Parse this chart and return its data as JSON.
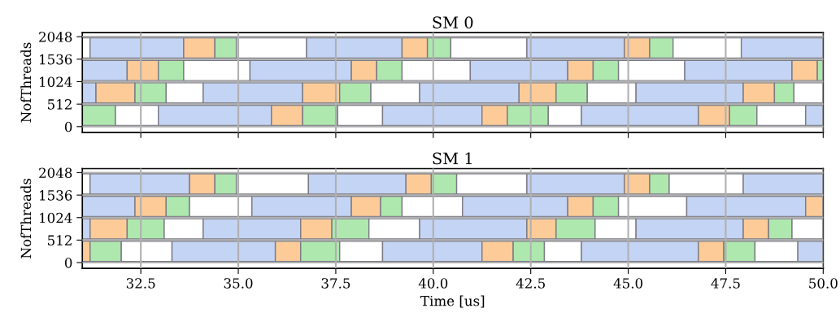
{
  "chart_data": [
    {
      "type": "bar",
      "title": "SM 0",
      "ylabel": "NofThreads",
      "orientation": "horizontal",
      "xlim": [
        31,
        50
      ],
      "xticks": [
        32.5,
        35,
        37.5,
        40,
        42.5,
        45,
        47.5,
        50
      ],
      "ylim": [
        -130,
        2140
      ],
      "yticks": [
        0,
        512,
        1024,
        1536,
        2048
      ],
      "grid": true,
      "tick_labels": "y",
      "series": [
        {
          "x": [
            1792,
            1280,
            768,
            256
          ],
          "base": [
            31,
            31,
            31,
            31
          ],
          "values": [
            0.2,
            1.15,
            0.35,
            0.85
          ],
          "colors": [
            "#ffffff",
            "#c4d4f4",
            "#c4d4f4",
            "#aee8ae"
          ]
        },
        {
          "x": [
            1792,
            1280,
            768,
            256
          ],
          "base": [
            31.2,
            32.15,
            31.35,
            31.85
          ],
          "values": [
            2.4,
            0.8,
            1.0,
            1.1
          ],
          "colors": [
            "#c4d4f4",
            "#fdcb98",
            "#fdcb98",
            "#ffffff"
          ]
        },
        {
          "x": [
            1792,
            1280,
            768,
            256
          ],
          "base": [
            33.6,
            32.95,
            32.35,
            32.95
          ],
          "values": [
            0.8,
            0.65,
            0.8,
            2.9
          ],
          "colors": [
            "#fdcb98",
            "#aee8ae",
            "#aee8ae",
            "#c4d4f4"
          ]
        },
        {
          "x": [
            1792,
            1280,
            768,
            256
          ],
          "base": [
            34.4,
            33.6,
            33.15,
            35.85
          ],
          "values": [
            0.55,
            1.7,
            0.95,
            0.8
          ],
          "colors": [
            "#aee8ae",
            "#ffffff",
            "#ffffff",
            "#fdcb98"
          ]
        },
        {
          "x": [
            1792,
            1280,
            768,
            256
          ],
          "base": [
            34.95,
            35.3,
            34.1,
            36.65
          ],
          "values": [
            1.8,
            2.6,
            2.55,
            0.9
          ],
          "colors": [
            "#ffffff",
            "#c4d4f4",
            "#c4d4f4",
            "#aee8ae"
          ]
        },
        {
          "x": [
            1792,
            1280,
            768,
            256
          ],
          "base": [
            36.75,
            37.9,
            36.65,
            37.55
          ],
          "values": [
            2.45,
            0.65,
            0.95,
            1.15
          ],
          "colors": [
            "#c4d4f4",
            "#fdcb98",
            "#fdcb98",
            "#ffffff"
          ]
        },
        {
          "x": [
            1792,
            1280,
            768,
            256
          ],
          "base": [
            39.2,
            38.55,
            37.6,
            38.7
          ],
          "values": [
            0.65,
            0.65,
            0.8,
            2.55
          ],
          "colors": [
            "#fdcb98",
            "#aee8ae",
            "#aee8ae",
            "#c4d4f4"
          ]
        },
        {
          "x": [
            1792,
            1280,
            768,
            256
          ],
          "base": [
            39.85,
            39.2,
            38.4,
            41.25
          ],
          "values": [
            0.6,
            1.75,
            1.25,
            0.65
          ],
          "colors": [
            "#aee8ae",
            "#ffffff",
            "#ffffff",
            "#fdcb98"
          ]
        },
        {
          "x": [
            1792,
            1280,
            768,
            256
          ],
          "base": [
            40.45,
            40.95,
            39.65,
            41.9
          ],
          "values": [
            1.95,
            2.5,
            2.55,
            1.05
          ],
          "colors": [
            "#ffffff",
            "#c4d4f4",
            "#c4d4f4",
            "#aee8ae"
          ]
        },
        {
          "x": [
            1792,
            1280,
            768,
            256
          ],
          "base": [
            42.4,
            43.45,
            42.2,
            42.95
          ],
          "values": [
            2.5,
            0.65,
            0.95,
            0.85
          ],
          "colors": [
            "#c4d4f4",
            "#fdcb98",
            "#fdcb98",
            "#ffffff"
          ]
        },
        {
          "x": [
            1792,
            1280,
            768,
            256
          ],
          "base": [
            44.9,
            44.1,
            43.15,
            43.8
          ],
          "values": [
            0.65,
            0.65,
            0.8,
            3.0
          ],
          "colors": [
            "#fdcb98",
            "#aee8ae",
            "#aee8ae",
            "#c4d4f4"
          ]
        },
        {
          "x": [
            1792,
            1280,
            768,
            256
          ],
          "base": [
            45.55,
            44.75,
            43.95,
            46.8
          ],
          "values": [
            0.6,
            1.7,
            1.25,
            0.8
          ],
          "colors": [
            "#aee8ae",
            "#ffffff",
            "#ffffff",
            "#fdcb98"
          ]
        },
        {
          "x": [
            1792,
            1280,
            768,
            256
          ],
          "base": [
            46.15,
            46.45,
            45.2,
            47.6
          ],
          "values": [
            1.75,
            2.75,
            2.75,
            0.7
          ],
          "colors": [
            "#ffffff",
            "#c4d4f4",
            "#c4d4f4",
            "#aee8ae"
          ]
        },
        {
          "x": [
            1792,
            1280,
            768,
            256
          ],
          "base": [
            47.9,
            49.2,
            47.95,
            48.3
          ],
          "values": [
            2.1,
            0.65,
            0.8,
            1.25
          ],
          "colors": [
            "#c4d4f4",
            "#fdcb98",
            "#fdcb98",
            "#ffffff"
          ]
        },
        {
          "x": [
            null,
            1280,
            768,
            256
          ],
          "base": [
            null,
            49.85,
            48.75,
            49.55
          ],
          "values": [
            null,
            0.15,
            0.5,
            0.45
          ],
          "colors": [
            null,
            "#aee8ae",
            "#aee8ae",
            "#c4d4f4"
          ]
        },
        {
          "x": [
            null,
            null,
            768,
            null
          ],
          "base": [
            null,
            null,
            49.25,
            null
          ],
          "values": [
            null,
            null,
            0.75,
            null
          ],
          "colors": [
            null,
            null,
            "#ffffff",
            null
          ]
        }
      ]
    },
    {
      "type": "bar",
      "title": "SM 1",
      "xlabel": "Time [us]",
      "ylabel": "NofThreads",
      "orientation": "horizontal",
      "xlim": [
        31,
        50
      ],
      "xticks": [
        32.5,
        {
          "value": 35,
          "label": "35.0"
        },
        37.5,
        {
          "value": 40,
          "label": "40.0"
        },
        42.5,
        {
          "value": 45,
          "label": "45.0"
        },
        47.5,
        {
          "value": 50,
          "label": "50.0"
        }
      ],
      "ylim": [
        -130,
        2140
      ],
      "yticks": [
        0,
        512,
        1024,
        1536,
        2048
      ],
      "grid": true,
      "series": [
        {
          "x": [
            1792,
            1280,
            768,
            256
          ],
          "base": [
            31,
            31,
            31,
            31
          ],
          "values": [
            0.2,
            1.35,
            0.2,
            0.2
          ],
          "colors": [
            "#ffffff",
            "#c4d4f4",
            "#c4d4f4",
            "#fdcb98"
          ]
        },
        {
          "x": [
            1792,
            1280,
            768,
            256
          ],
          "base": [
            31.2,
            32.35,
            31.2,
            31.2
          ],
          "values": [
            2.55,
            0.8,
            0.95,
            0.8
          ],
          "colors": [
            "#c4d4f4",
            "#fdcb98",
            "#fdcb98",
            "#aee8ae"
          ]
        },
        {
          "x": [
            1792,
            1280,
            768,
            256
          ],
          "base": [
            33.75,
            33.15,
            32.15,
            32.0
          ],
          "values": [
            0.65,
            0.6,
            0.95,
            1.3
          ],
          "colors": [
            "#fdcb98",
            "#aee8ae",
            "#aee8ae",
            "#ffffff"
          ]
        },
        {
          "x": [
            1792,
            1280,
            768,
            256
          ],
          "base": [
            34.4,
            33.75,
            33.1,
            33.3
          ],
          "values": [
            0.55,
            1.6,
            1.0,
            2.65
          ],
          "colors": [
            "#aee8ae",
            "#ffffff",
            "#ffffff",
            "#c4d4f4"
          ]
        },
        {
          "x": [
            1792,
            1280,
            768,
            256
          ],
          "base": [
            34.95,
            35.35,
            34.1,
            35.95
          ],
          "values": [
            1.85,
            2.55,
            2.5,
            0.65
          ],
          "colors": [
            "#ffffff",
            "#c4d4f4",
            "#c4d4f4",
            "#fdcb98"
          ]
        },
        {
          "x": [
            1792,
            1280,
            768,
            256
          ],
          "base": [
            36.8,
            37.9,
            36.6,
            36.6
          ],
          "values": [
            2.5,
            0.75,
            0.8,
            1.0
          ],
          "colors": [
            "#c4d4f4",
            "#fdcb98",
            "#fdcb98",
            "#aee8ae"
          ]
        },
        {
          "x": [
            1792,
            1280,
            768,
            256
          ],
          "base": [
            39.3,
            38.65,
            37.4,
            37.6
          ],
          "values": [
            0.65,
            0.55,
            0.95,
            1.1
          ],
          "colors": [
            "#fdcb98",
            "#aee8ae",
            "#aee8ae",
            "#ffffff"
          ]
        },
        {
          "x": [
            1792,
            1280,
            768,
            256
          ],
          "base": [
            39.95,
            39.2,
            38.35,
            38.7
          ],
          "values": [
            0.65,
            1.55,
            1.3,
            2.55
          ],
          "colors": [
            "#aee8ae",
            "#ffffff",
            "#ffffff",
            "#c4d4f4"
          ]
        },
        {
          "x": [
            1792,
            1280,
            768,
            256
          ],
          "base": [
            40.6,
            40.75,
            39.65,
            41.25
          ],
          "values": [
            1.8,
            2.7,
            2.75,
            0.8
          ],
          "colors": [
            "#ffffff",
            "#c4d4f4",
            "#c4d4f4",
            "#fdcb98"
          ]
        },
        {
          "x": [
            1792,
            1280,
            768,
            256
          ],
          "base": [
            42.4,
            43.45,
            42.4,
            42.05
          ],
          "values": [
            2.5,
            0.65,
            0.75,
            0.8
          ],
          "colors": [
            "#c4d4f4",
            "#fdcb98",
            "#fdcb98",
            "#aee8ae"
          ]
        },
        {
          "x": [
            1792,
            1280,
            768,
            256
          ],
          "base": [
            44.9,
            44.1,
            43.15,
            42.85
          ],
          "values": [
            0.65,
            0.65,
            1.0,
            0.95
          ],
          "colors": [
            "#fdcb98",
            "#aee8ae",
            "#aee8ae",
            "#ffffff"
          ]
        },
        {
          "x": [
            1792,
            1280,
            768,
            256
          ],
          "base": [
            45.55,
            44.75,
            44.15,
            43.8
          ],
          "values": [
            0.5,
            1.75,
            1.05,
            3.0
          ],
          "colors": [
            "#aee8ae",
            "#ffffff",
            "#ffffff",
            "#c4d4f4"
          ]
        },
        {
          "x": [
            1792,
            1280,
            768,
            256
          ],
          "base": [
            46.05,
            46.5,
            45.2,
            46.8
          ],
          "values": [
            1.9,
            3.05,
            2.75,
            0.65
          ],
          "colors": [
            "#ffffff",
            "#c4d4f4",
            "#c4d4f4",
            "#fdcb98"
          ]
        },
        {
          "x": [
            1792,
            1280,
            768,
            256
          ],
          "base": [
            47.95,
            49.55,
            47.95,
            47.45
          ],
          "values": [
            2.05,
            0.45,
            0.65,
            0.8
          ],
          "colors": [
            "#c4d4f4",
            "#fdcb98",
            "#fdcb98",
            "#aee8ae"
          ]
        },
        {
          "x": [
            null,
            null,
            768,
            256
          ],
          "base": [
            null,
            null,
            48.6,
            48.25
          ],
          "values": [
            null,
            null,
            0.6,
            1.1
          ],
          "colors": [
            null,
            null,
            "#aee8ae",
            "#ffffff"
          ]
        },
        {
          "x": [
            null,
            null,
            768,
            256
          ],
          "base": [
            null,
            null,
            49.2,
            49.35
          ],
          "values": [
            null,
            null,
            0.8,
            0.65
          ],
          "colors": [
            null,
            null,
            "#ffffff",
            "#c4d4f4"
          ]
        }
      ]
    }
  ]
}
